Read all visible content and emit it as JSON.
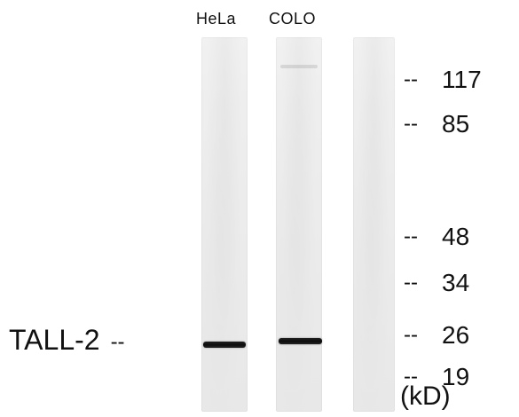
{
  "lanes": [
    {
      "label": "HeLa",
      "band_present": true
    },
    {
      "label": "COLO",
      "band_present": true
    },
    {
      "label": "",
      "band_present": false
    }
  ],
  "markers": [
    {
      "dash": "--",
      "value": "117"
    },
    {
      "dash": "--",
      "value": "85"
    },
    {
      "dash": "--",
      "value": "48"
    },
    {
      "dash": "--",
      "value": "34"
    },
    {
      "dash": "--",
      "value": "26"
    },
    {
      "dash": "--",
      "value": "19"
    }
  ],
  "unit": "(kD)",
  "target": {
    "label": "TALL-2",
    "dash": "--"
  }
}
